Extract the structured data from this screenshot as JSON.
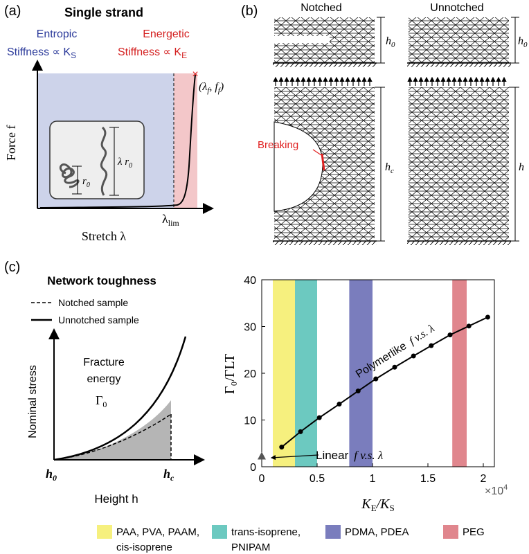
{
  "panel_a": {
    "label": "(a)",
    "title": "Single strand",
    "entropic_line1": "Entropic",
    "entropic_line2": "Stiffness ∝ K",
    "entropic_sub": "S",
    "energetic_line1": "Energetic",
    "energetic_line2": "Stiffness ∝ K",
    "energetic_sub": "E",
    "y_label": "Force f",
    "x_label": "Stretch λ",
    "lambda_lim": "λ",
    "lambda_lim_sub": "lim",
    "failure_point": "(λ",
    "failure_point_f": ", f",
    "failure_point_close": ")",
    "failure_sub": "f",
    "inset_r0": "r",
    "inset_r0_sub": "0",
    "inset_lambda_r0": "λ r",
    "inset_lambda_r0_sub": "0",
    "colors": {
      "entropic": "#cdd3ea",
      "energetic": "#f3c7c9",
      "curve": "#000000",
      "marker": "#e02020"
    }
  },
  "panel_b": {
    "label": "(b)",
    "notched": "Notched",
    "unnotched": "Unnotched",
    "h0": "h",
    "h0_sub": "0",
    "hc": "h",
    "hc_sub": "c",
    "h": "h",
    "breaking": "Breaking",
    "colors": {
      "breaking": "#e02020"
    }
  },
  "panel_c": {
    "label": "(c)",
    "title": "Network toughness",
    "legend_notched": "Notched sample",
    "legend_unnotched": "Unnotched sample",
    "y_label": "Nominal stress",
    "x_label": "Height h",
    "fracture_line1": "Fracture",
    "fracture_line2": "energy",
    "gamma0": "Γ",
    "gamma0_sub": "0",
    "x_tick_h0": "h",
    "x_tick_h0_sub": "0",
    "x_tick_hc": "h",
    "x_tick_hc_sub": "c"
  },
  "chart_data": {
    "type": "line",
    "ylabel": "Γ₀/ΓLT",
    "xlabel": "K_E/K_S",
    "x_multiplier": "×10",
    "x_multiplier_exp": "4",
    "xlim": [
      0,
      2.1
    ],
    "ylim": [
      0,
      40
    ],
    "x_ticks": [
      "0",
      "0.5",
      "1",
      "1.5",
      "2"
    ],
    "y_ticks": [
      "0",
      "10",
      "20",
      "30",
      "40"
    ],
    "series": [
      {
        "name": "Polymerlike f v.s. λ",
        "x": [
          0.18,
          0.35,
          0.52,
          0.7,
          0.87,
          1.03,
          1.2,
          1.37,
          1.53,
          1.7,
          1.87,
          2.04
        ],
        "y": [
          4.2,
          7.5,
          10.5,
          13.4,
          16.2,
          18.8,
          21.3,
          23.7,
          25.9,
          28.2,
          30.1,
          32.0
        ]
      }
    ],
    "linear_point": {
      "x": 0,
      "y": 2.3
    },
    "annotations": {
      "polymerlike": "Polymerlike",
      "polymerlike_math": "f v.s. λ",
      "linear": "Linear",
      "linear_math": "f v.s. λ"
    },
    "bands": [
      {
        "range": [
          0.1,
          0.3
        ],
        "color": "#f6f07e",
        "label_line1": "PAA, PVA, PAAM,",
        "label_line2": "cis-isoprene"
      },
      {
        "range": [
          0.3,
          0.5
        ],
        "color": "#6cc9c0",
        "label_line1": "trans-isoprene,",
        "label_line2": "PNIPAM"
      },
      {
        "range": [
          0.79,
          1.0
        ],
        "color": "#7a7dbd",
        "label_line1": "PDMA, PDEA",
        "label_line2": ""
      },
      {
        "range": [
          1.72,
          1.85
        ],
        "color": "#e0868d",
        "label_line1": "PEG",
        "label_line2": ""
      }
    ],
    "grid": false,
    "legend_position": "bottom"
  }
}
